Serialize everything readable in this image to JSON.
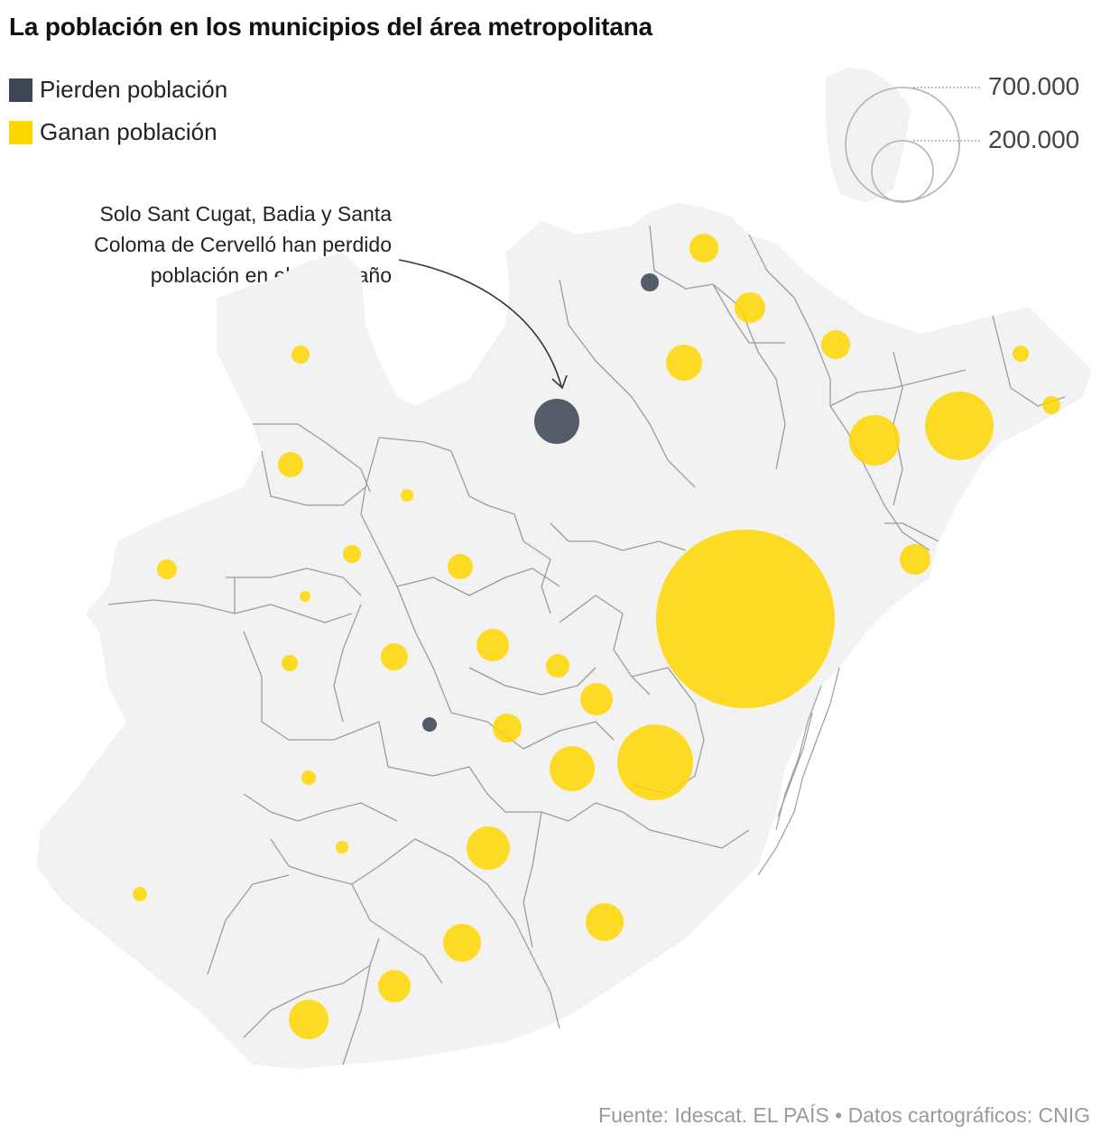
{
  "title": "La población en los municipios del área metropolitana",
  "legend": {
    "loss_label": "Pierden población",
    "gain_label": "Ganan población",
    "loss_color": "#3d4655",
    "gain_color": "#ffd700"
  },
  "size_legend": {
    "large_value": "700.000",
    "small_value": "200.000"
  },
  "annotation": {
    "line1": "Solo Sant Cugat, Badia y Santa",
    "line2": "Coloma de Cervelló han perdido",
    "line3": "población en el último año"
  },
  "source": "Fuente: Idescat. EL PAÍS  • Datos cartográficos: CNIG",
  "colors": {
    "land": "#f2f2f2",
    "border": "#9c9c9c"
  }
}
